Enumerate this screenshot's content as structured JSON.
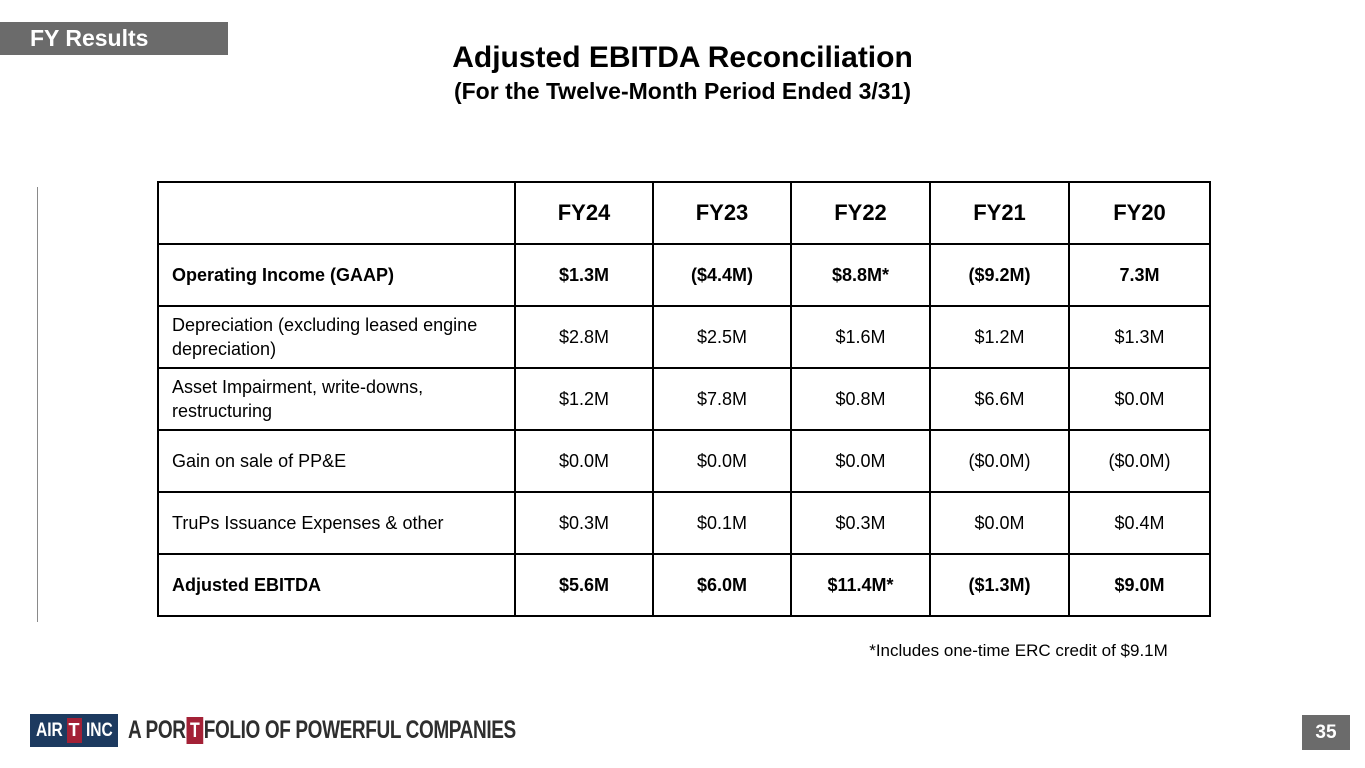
{
  "slide": {
    "badge": "FY Results",
    "title": "Adjusted EBITDA Reconciliation",
    "subtitle": "(For the Twelve-Month Period Ended 3/31)",
    "footnote": "*Includes one-time ERC credit of $9.1M",
    "page_number": "35"
  },
  "logo": {
    "air": "AIR",
    "t": "T",
    "inc": "INC",
    "tagline_pre": "A POR",
    "tagline_t": "T",
    "tagline_post": "FOLIO OF POWERFUL COMPANIES"
  },
  "colors": {
    "badge_gray": "#6b6b6b",
    "table_border": "#000000",
    "logo_navy": "#1d3a5f",
    "logo_red": "#a32136",
    "tagline_text": "#2e2e2e"
  },
  "chart_data": {
    "type": "table",
    "title": "Adjusted EBITDA Reconciliation (For the Twelve-Month Period Ended 3/31)",
    "columns": [
      "",
      "FY24",
      "FY23",
      "FY22",
      "FY21",
      "FY20"
    ],
    "rows": [
      {
        "label": "Operating Income (GAAP)",
        "bold": true,
        "values": [
          "$1.3M",
          "($4.4M)",
          "$8.8M*",
          "($9.2M)",
          "7.3M"
        ]
      },
      {
        "label": "Depreciation (excluding leased engine depreciation)",
        "bold": false,
        "values": [
          "$2.8M",
          "$2.5M",
          "$1.6M",
          "$1.2M",
          "$1.3M"
        ]
      },
      {
        "label": "Asset Impairment, write-downs, restructuring",
        "bold": false,
        "values": [
          "$1.2M",
          "$7.8M",
          "$0.8M",
          "$6.6M",
          "$0.0M"
        ]
      },
      {
        "label": "Gain on sale of PP&E",
        "bold": false,
        "values": [
          "$0.0M",
          "$0.0M",
          "$0.0M",
          "($0.0M)",
          "($0.0M)"
        ]
      },
      {
        "label": "TruPs Issuance Expenses & other",
        "bold": false,
        "values": [
          "$0.3M",
          "$0.1M",
          "$0.3M",
          "$0.0M",
          "$0.4M"
        ]
      },
      {
        "label": "Adjusted EBITDA",
        "bold": true,
        "values": [
          "$5.6M",
          "$6.0M",
          "$11.4M*",
          "($1.3M)",
          "$9.0M"
        ]
      }
    ],
    "footnote": "*Includes one-time ERC credit of $9.1M"
  }
}
